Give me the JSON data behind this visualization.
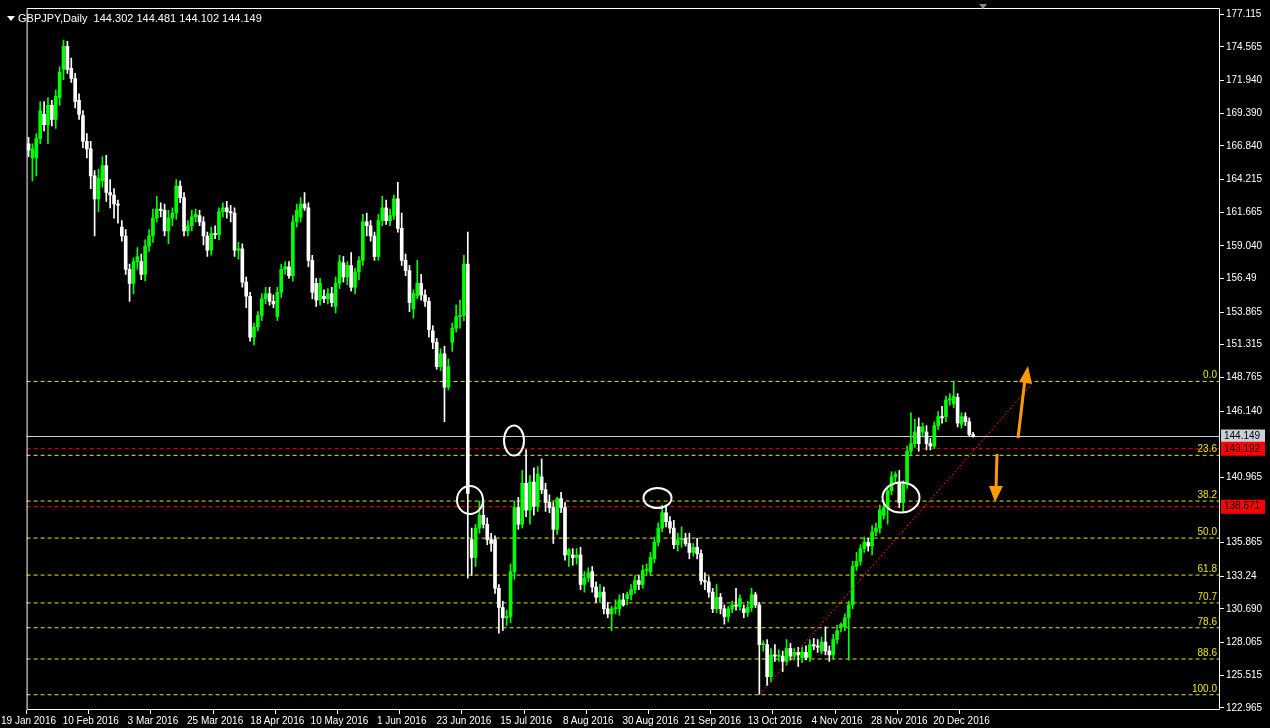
{
  "chart_data": {
    "type": "candlestick",
    "title": "GBPJPY,Daily  144.302 144.481 144.102 144.149",
    "colors": [
      "#ffffff",
      "#00ff00",
      "#00ff00",
      "#00ff00",
      "#ffffff",
      "#00ff00",
      "#ffffff",
      "#00ff00",
      "#00ff00",
      "#00ff00",
      "#ffffff",
      "#ffffff",
      "#ffffff",
      "#ffffff",
      "#ffffff",
      "#ffffff",
      "#ffffff",
      "#ffffff",
      "#00ff00",
      "#00ff00",
      "#ffffff",
      "#ffffff",
      "#ffffff",
      "#ffffff",
      "#ffffff",
      "#ffffff",
      "#ffffff",
      "#00ff00",
      "#00ff00",
      "#ffffff",
      "#00ff00",
      "#00ff00",
      "#00ff00",
      "#00ff00",
      "#ffffff",
      "#ffffff",
      "#00ff00",
      "#00ff00",
      "#00ff00",
      "#ffffff",
      "#ffffff",
      "#00ff00",
      "#00ff00",
      "#00ff00",
      "#ffffff",
      "#ffffff",
      "#ffffff",
      "#00ff00",
      "#ffffff",
      "#00ff00",
      "#00ff00",
      "#ffffff",
      "#ffffff",
      "#ffffff",
      "#00ff00",
      "#ffffff",
      "#ffffff",
      "#ffffff",
      "#00ff00",
      "#00ff00",
      "#00ff00",
      "#00ff00",
      "#ffffff",
      "#ffffff",
      "#00ff00",
      "#00ff00",
      "#00ff00",
      "#ffffff",
      "#00ff00",
      "#00ff00",
      "#00ff00",
      "#ffffff",
      "#ffffff",
      "#ffffff",
      "#ffffff",
      "#00ff00",
      "#ffffff",
      "#00ff00",
      "#ffffff",
      "#00ff00",
      "#00ff00",
      "#ffffff",
      "#00ff00",
      "#ffffff",
      "#00ff00",
      "#00ff00",
      "#00ff00",
      "#ffffff",
      "#ffffff",
      "#ffffff",
      "#00ff00",
      "#00ff00",
      "#ffffff",
      "#00ff00",
      "#00ff00",
      "#ffffff",
      "#ffffff",
      "#ffffff",
      "#ffffff",
      "#00ff00",
      "#00ff00",
      "#ffffff",
      "#ffffff",
      "#ffffff",
      "#ffffff",
      "#ffffff",
      "#00ff00",
      "#ffffff",
      "#00ff00",
      "#00ff00",
      "#00ff00",
      "#00ff00",
      "#00ff00",
      "#ffffff",
      "#ffffff",
      "#00ff00",
      "#00ff00",
      "#ffffff",
      "#ffffff",
      "#ffffff",
      "#ffffff",
      "#ffffff",
      "#ffffff",
      "#00ff00",
      "#00ff00",
      "#00ff00",
      "#ffffff",
      "#00ff00",
      "#ffffff",
      "#00ff00",
      "#ffffff",
      "#00ff00",
      "#ffffff",
      "#ffffff",
      "#ffffff",
      "#ffffff",
      "#00ff00",
      "#ffffff",
      "#ffffff",
      "#00ff00",
      "#ffffff",
      "#00ff00",
      "#ffffff",
      "#00ff00",
      "#00ff00",
      "#ffffff",
      "#ffffff",
      "#00ff00",
      "#ffffff",
      "#ffffff",
      "#00ff00",
      "#00ff00",
      "#00ff00",
      "#ffffff",
      "#00ff00",
      "#00ff00",
      "#00ff00",
      "#ffffff",
      "#00ff00",
      "#00ff00",
      "#00ff00",
      "#00ff00",
      "#00ff00",
      "#00ff00",
      "#ffffff",
      "#ffffff",
      "#ffffff",
      "#00ff00",
      "#00ff00",
      "#ffffff",
      "#ffffff",
      "#00ff00",
      "#ffffff",
      "#ffffff",
      "#ffffff",
      "#ffffff",
      "#ffffff",
      "#00ff00",
      "#ffffff",
      "#ffffff",
      "#00ff00",
      "#00ff00",
      "#ffffff",
      "#00ff00",
      "#ffffff",
      "#00ff00",
      "#00ff00",
      "#ffffff",
      "#ffffff",
      "#00ff00",
      "#ffffff",
      "#00ff00",
      "#ffffff",
      "#00ff00",
      "#ffffff",
      "#00ff00",
      "#ffffff",
      "#00ff00",
      "#ffffff",
      "#00ff00",
      "#ffffff",
      "#00ff00",
      "#ffffff",
      "#ffffff",
      "#00ff00",
      "#ffffff",
      "#ffffff",
      "#00ff00",
      "#00ff00",
      "#00ff00",
      "#00ff00",
      "#00ff00",
      "#00ff00",
      "#00ff00",
      "#00ff00",
      "#00ff00",
      "#ffffff",
      "#00ff00",
      "#00ff00",
      "#00ff00",
      "#00ff00",
      "#00ff00",
      "#00ff00",
      "#00ff00",
      "#ffffff",
      "#00ff00",
      "#00ff00",
      "#00ff00",
      "#00ff00",
      "#ffffff",
      "#00ff00",
      "#ffffff",
      "#ffffff",
      "#00ff00",
      "#00ff00",
      "#ffffff",
      "#00ff00",
      "#00ff00",
      "#00ff00",
      "#ffffff",
      "#00ff00",
      "#ffffff",
      "#ffffff",
      "#ffffff",
      null,
      null,
      null,
      null,
      null,
      null,
      null,
      null,
      null,
      null,
      null,
      null,
      null,
      null,
      null,
      null,
      null,
      null,
      null,
      null,
      null,
      null,
      null,
      null,
      null,
      null,
      null,
      null,
      null,
      null,
      null,
      null,
      null,
      null,
      null,
      null,
      null,
      null,
      null,
      null,
      null,
      null,
      null,
      null,
      null,
      null,
      null,
      null,
      null,
      null,
      null,
      null,
      null,
      null,
      null,
      null,
      null,
      null,
      null,
      null,
      null,
      null,
      null
    ],
    "categories": [
      "19 Jan 2016",
      null,
      null,
      null,
      null,
      null,
      null,
      null,
      null,
      null,
      null,
      null,
      null,
      null,
      null,
      null,
      "10 Feb 2016",
      null,
      null,
      null,
      null,
      null,
      null,
      null,
      null,
      null,
      null,
      null,
      null,
      null,
      null,
      null,
      "3 Mar 2016",
      null,
      null,
      null,
      null,
      null,
      null,
      null,
      null,
      null,
      null,
      null,
      null,
      null,
      null,
      null,
      "25 Mar 2016",
      null,
      null,
      null,
      null,
      null,
      null,
      null,
      null,
      null,
      null,
      null,
      null,
      null,
      null,
      null,
      "18 Apr 2016",
      null,
      null,
      null,
      null,
      null,
      null,
      null,
      null,
      null,
      null,
      null,
      null,
      null,
      null,
      null,
      "10 May 2016",
      null,
      null,
      null,
      null,
      null,
      null,
      null,
      null,
      null,
      null,
      null,
      null,
      null,
      null,
      null,
      "1 Jun 2016",
      null,
      null,
      null,
      null,
      null,
      null,
      null,
      null,
      null,
      null,
      null,
      null,
      null,
      null,
      null,
      "23 Jun 2016",
      null,
      null,
      null,
      null,
      null,
      null,
      null,
      null,
      null,
      null,
      null,
      null,
      null,
      null,
      null,
      "15 Jul 2016",
      null,
      null,
      null,
      null,
      null,
      null,
      null,
      null,
      null,
      null,
      null,
      null,
      null,
      null,
      null,
      "8 Aug 2016",
      null,
      null,
      null,
      null,
      null,
      null,
      null,
      null,
      null,
      null,
      null,
      null,
      null,
      null,
      null,
      "30 Aug 2016",
      null,
      null,
      null,
      null,
      null,
      null,
      null,
      null,
      null,
      null,
      null,
      null,
      null,
      null,
      null,
      "21 Sep 2016",
      null,
      null,
      null,
      null,
      null,
      null,
      null,
      null,
      null,
      null,
      null,
      null,
      null,
      null,
      null,
      "13 Oct 2016",
      null,
      null,
      null,
      null,
      null,
      null,
      null,
      null,
      null,
      null,
      null,
      null,
      null,
      null,
      null,
      "4 Nov 2016",
      null,
      null,
      null,
      null,
      null,
      null,
      null,
      null,
      null,
      null,
      null,
      null,
      null,
      null,
      null,
      "28 Nov 2016",
      null,
      null,
      null,
      null,
      null,
      null,
      null,
      null,
      null,
      null,
      null,
      null,
      null,
      null,
      null,
      "20 Dec 2016",
      null,
      null,
      null,
      null,
      null,
      null,
      null,
      null,
      null,
      null,
      null,
      null,
      null,
      null,
      null,
      null,
      null,
      null,
      null,
      null,
      null,
      null,
      null,
      null,
      null,
      null,
      null,
      null,
      null,
      null,
      null,
      null,
      null,
      null,
      null,
      null,
      null,
      null,
      null,
      null,
      null,
      null,
      null,
      null,
      null,
      null,
      null,
      null,
      null,
      null,
      null,
      null,
      null,
      null,
      null,
      null,
      null,
      null,
      null,
      null,
      null,
      null,
      null,
      null,
      null,
      null
    ],
    "ohlc": [
      [
        167.0,
        167.5,
        166.0,
        166.5
      ],
      [
        165.9,
        167.0,
        164.1,
        166.6
      ],
      [
        165.9,
        167.8,
        164.5,
        167.4
      ],
      [
        167.4,
        170.3,
        167.0,
        169.6
      ],
      [
        169.3,
        170.3,
        168.0,
        168.5
      ],
      [
        168.5,
        170.6,
        167.0,
        170.0
      ],
      [
        170.0,
        170.4,
        168.4,
        168.9
      ],
      [
        168.9,
        171.2,
        168.2,
        170.7
      ],
      [
        170.6,
        173.0,
        170.0,
        172.6
      ],
      [
        172.8,
        175.1,
        172.0,
        174.6
      ],
      [
        174.6,
        175.0,
        172.5,
        172.8
      ],
      [
        172.9,
        173.7,
        171.8,
        172.1
      ],
      [
        172.1,
        172.5,
        169.8,
        170.3
      ],
      [
        170.4,
        170.9,
        168.9,
        169.3
      ],
      [
        169.2,
        169.6,
        166.7,
        167.2
      ],
      [
        167.2,
        167.8,
        165.9,
        166.6
      ],
      [
        166.6,
        167.2,
        163.5,
        164.5
      ],
      [
        164.5,
        164.9,
        159.8,
        162.7
      ],
      [
        162.7,
        165.0,
        161.7,
        164.3
      ],
      [
        164.1,
        166.0,
        163.6,
        165.3
      ],
      [
        165.3,
        166.1,
        162.5,
        163.2
      ],
      [
        163.2,
        164.2,
        162.0,
        163.0
      ],
      [
        163.0,
        163.5,
        161.2,
        162.3
      ],
      [
        162.3,
        162.6,
        160.8,
        162.2
      ],
      [
        160.5,
        161.0,
        159.4,
        159.8
      ],
      [
        159.8,
        160.3,
        156.8,
        157.2
      ],
      [
        157.2,
        157.6,
        154.7,
        156.1
      ],
      [
        156.1,
        158.1,
        155.3,
        157.8
      ],
      [
        157.8,
        158.9,
        157.2,
        158.2
      ],
      [
        157.8,
        158.4,
        156.4,
        156.8
      ],
      [
        156.8,
        159.5,
        156.3,
        159.0
      ],
      [
        159.0,
        160.3,
        158.6,
        159.8
      ],
      [
        159.8,
        161.9,
        159.3,
        161.2
      ],
      [
        161.2,
        162.9,
        160.9,
        161.9
      ],
      [
        161.9,
        162.4,
        161.3,
        161.8
      ],
      [
        161.8,
        162.3,
        159.8,
        160.2
      ],
      [
        160.2,
        161.8,
        159.2,
        161.2
      ],
      [
        161.2,
        162.0,
        160.6,
        161.6
      ],
      [
        161.6,
        164.2,
        161.1,
        163.7
      ],
      [
        163.7,
        164.1,
        162.4,
        162.8
      ],
      [
        162.8,
        163.2,
        159.8,
        160.2
      ],
      [
        160.2,
        161.0,
        159.8,
        160.6
      ],
      [
        160.6,
        161.8,
        160.2,
        161.3
      ],
      [
        161.3,
        161.9,
        160.9,
        161.5
      ],
      [
        161.4,
        161.8,
        160.6,
        160.9
      ],
      [
        160.9,
        161.3,
        159.1,
        159.8
      ],
      [
        159.8,
        160.1,
        158.2,
        158.7
      ],
      [
        158.7,
        160.5,
        158.3,
        160.0
      ],
      [
        160.0,
        160.6,
        159.6,
        159.9
      ],
      [
        159.9,
        162.0,
        159.5,
        161.7
      ],
      [
        161.7,
        162.4,
        161.3,
        162.0
      ],
      [
        162.0,
        162.5,
        161.2,
        161.7
      ],
      [
        161.7,
        162.2,
        160.9,
        161.6
      ],
      [
        161.6,
        162.0,
        158.2,
        158.7
      ],
      [
        158.7,
        159.3,
        158.0,
        158.8
      ],
      [
        158.8,
        159.2,
        155.8,
        156.2
      ],
      [
        156.2,
        156.6,
        154.2,
        155.1
      ],
      [
        155.1,
        155.4,
        151.6,
        151.9
      ],
      [
        151.9,
        153.0,
        151.3,
        152.7
      ],
      [
        152.7,
        153.9,
        152.4,
        153.6
      ],
      [
        153.6,
        155.3,
        153.2,
        154.9
      ],
      [
        154.9,
        155.8,
        154.5,
        155.3
      ],
      [
        155.3,
        155.8,
        154.4,
        154.7
      ],
      [
        154.7,
        155.2,
        154.2,
        154.5
      ],
      [
        153.5,
        155.8,
        153.2,
        155.4
      ],
      [
        155.4,
        157.6,
        155.0,
        157.2
      ],
      [
        157.2,
        157.8,
        156.8,
        157.4
      ],
      [
        157.4,
        157.8,
        156.5,
        156.7
      ],
      [
        156.7,
        161.4,
        156.3,
        160.9
      ],
      [
        160.9,
        162.3,
        160.5,
        161.8
      ],
      [
        161.3,
        162.8,
        160.9,
        162.3
      ],
      [
        162.3,
        163.2,
        161.8,
        162.0
      ],
      [
        162.0,
        162.4,
        157.4,
        157.9
      ],
      [
        157.9,
        158.3,
        154.9,
        155.4
      ],
      [
        156.1,
        156.5,
        154.3,
        154.8
      ],
      [
        154.8,
        156.5,
        154.4,
        156.1
      ],
      [
        155.1,
        155.6,
        154.6,
        154.9
      ],
      [
        154.9,
        155.7,
        154.5,
        155.3
      ],
      [
        155.3,
        155.8,
        154.3,
        154.6
      ],
      [
        154.3,
        156.6,
        153.8,
        156.1
      ],
      [
        156.1,
        158.3,
        155.7,
        157.8
      ],
      [
        157.7,
        158.2,
        156.2,
        156.6
      ],
      [
        156.6,
        157.8,
        156.0,
        157.5
      ],
      [
        157.5,
        158.5,
        155.5,
        155.8
      ],
      [
        155.8,
        157.3,
        155.3,
        157.0
      ],
      [
        157.0,
        158.2,
        156.4,
        157.9
      ],
      [
        157.9,
        161.5,
        157.5,
        160.9
      ],
      [
        160.9,
        161.6,
        159.8,
        160.6
      ],
      [
        160.6,
        161.0,
        159.4,
        159.8
      ],
      [
        159.8,
        160.1,
        157.9,
        158.2
      ],
      [
        158.2,
        161.5,
        157.9,
        161.0
      ],
      [
        161.0,
        162.9,
        160.6,
        162.0
      ],
      [
        162.0,
        162.6,
        160.7,
        161.0
      ],
      [
        161.0,
        161.9,
        160.6,
        161.4
      ],
      [
        161.4,
        163.0,
        161.1,
        162.7
      ],
      [
        162.7,
        164.0,
        160.1,
        160.4
      ],
      [
        160.4,
        161.6,
        157.5,
        157.9
      ],
      [
        157.9,
        158.4,
        156.7,
        157.1
      ],
      [
        157.1,
        157.5,
        153.9,
        154.6
      ],
      [
        154.1,
        155.6,
        153.4,
        155.3
      ],
      [
        155.1,
        157.9,
        154.9,
        156.1
      ],
      [
        156.1,
        156.8,
        154.8,
        155.2
      ],
      [
        155.2,
        155.6,
        154.3,
        154.7
      ],
      [
        154.7,
        155.0,
        151.9,
        152.5
      ],
      [
        152.4,
        152.8,
        151.0,
        151.5
      ],
      [
        151.5,
        151.8,
        149.4,
        149.6
      ],
      [
        149.6,
        151.0,
        149.3,
        150.6
      ],
      [
        150.6,
        151.2,
        145.3,
        148.0
      ],
      [
        148.0,
        150.2,
        147.8,
        149.6
      ],
      [
        151.5,
        153.0,
        150.8,
        152.6
      ],
      [
        152.6,
        154.4,
        152.3,
        153.5
      ],
      [
        153.5,
        154.8,
        152.6,
        153.6
      ],
      [
        153.6,
        158.3,
        153.2,
        157.6
      ],
      [
        157.6,
        160.1,
        133.1,
        139.7
      ],
      [
        136.1,
        137.0,
        133.3,
        134.7
      ],
      [
        134.7,
        137.3,
        134.0,
        137.0
      ],
      [
        137.0,
        139.1,
        136.6,
        138.0
      ],
      [
        138.0,
        139.0,
        137.0,
        137.3
      ],
      [
        137.3,
        137.8,
        135.7,
        136.1
      ],
      [
        136.1,
        136.6,
        135.2,
        135.8
      ],
      [
        136.1,
        136.4,
        131.9,
        132.3
      ],
      [
        132.3,
        132.6,
        128.8,
        130.8
      ],
      [
        130.8,
        131.3,
        129.0,
        130.0
      ],
      [
        130.0,
        130.6,
        129.4,
        130.1
      ],
      [
        130.1,
        134.2,
        129.6,
        133.6
      ],
      [
        133.6,
        139.1,
        133.0,
        138.6
      ],
      [
        138.6,
        139.4,
        136.9,
        137.3
      ],
      [
        137.3,
        141.5,
        137.0,
        140.5
      ],
      [
        140.5,
        143.1,
        137.9,
        138.4
      ],
      [
        138.4,
        141.1,
        137.3,
        140.6
      ],
      [
        140.6,
        141.7,
        138.0,
        138.7
      ],
      [
        138.7,
        141.8,
        138.3,
        141.2
      ],
      [
        141.0,
        142.4,
        139.7,
        140.0
      ],
      [
        140.0,
        140.5,
        138.3,
        139.0
      ],
      [
        139.0,
        139.6,
        138.2,
        138.6
      ],
      [
        138.6,
        139.0,
        135.8,
        136.9
      ],
      [
        136.9,
        139.4,
        136.5,
        139.3
      ],
      [
        139.3,
        139.8,
        138.2,
        138.6
      ],
      [
        138.6,
        139.0,
        134.5,
        134.9
      ],
      [
        134.9,
        135.4,
        134.0,
        135.3
      ],
      [
        134.9,
        135.4,
        134.1,
        134.7
      ],
      [
        134.7,
        135.4,
        134.2,
        134.9
      ],
      [
        134.9,
        135.5,
        132.2,
        132.6
      ],
      [
        132.6,
        133.6,
        132.0,
        133.1
      ],
      [
        133.1,
        133.9,
        132.8,
        133.5
      ],
      [
        133.6,
        134.0,
        132.0,
        132.4
      ],
      [
        132.4,
        132.8,
        131.2,
        131.6
      ],
      [
        131.6,
        132.6,
        131.2,
        132.0
      ],
      [
        132.0,
        132.4,
        130.3,
        130.7
      ],
      [
        130.7,
        131.2,
        130.0,
        130.3
      ],
      [
        130.3,
        130.9,
        129.0,
        130.7
      ],
      [
        130.7,
        131.4,
        130.3,
        130.8
      ],
      [
        130.7,
        131.8,
        130.2,
        131.4
      ],
      [
        131.4,
        131.9,
        130.9,
        131.0
      ],
      [
        131.5,
        132.0,
        131.0,
        131.8
      ],
      [
        131.8,
        132.6,
        131.4,
        132.2
      ],
      [
        132.2,
        133.3,
        131.9,
        132.9
      ],
      [
        132.9,
        133.3,
        132.2,
        132.6
      ],
      [
        132.6,
        134.1,
        132.3,
        133.7
      ],
      [
        133.7,
        134.2,
        133.3,
        133.8
      ],
      [
        133.6,
        135.1,
        133.3,
        134.7
      ],
      [
        134.6,
        136.3,
        134.3,
        135.9
      ],
      [
        135.9,
        137.4,
        135.6,
        137.0
      ],
      [
        137.0,
        138.8,
        136.7,
        138.2
      ],
      [
        138.2,
        138.8,
        137.1,
        137.5
      ],
      [
        137.5,
        137.9,
        136.6,
        137.0
      ],
      [
        137.0,
        137.6,
        135.4,
        135.7
      ],
      [
        135.7,
        136.6,
        135.2,
        136.1
      ],
      [
        136.1,
        137.1,
        135.5,
        136.2
      ],
      [
        136.2,
        136.6,
        135.6,
        135.8
      ],
      [
        135.8,
        136.6,
        134.6,
        135.1
      ],
      [
        135.1,
        135.8,
        134.8,
        135.5
      ],
      [
        135.5,
        136.2,
        134.6,
        135.0
      ],
      [
        135.0,
        135.3,
        132.6,
        132.9
      ],
      [
        132.9,
        133.5,
        132.2,
        132.8
      ],
      [
        132.8,
        133.2,
        131.6,
        132.0
      ],
      [
        132.0,
        132.3,
        130.4,
        130.7
      ],
      [
        130.7,
        132.6,
        130.4,
        131.6
      ],
      [
        131.6,
        131.9,
        130.3,
        130.7
      ],
      [
        130.7,
        131.0,
        129.5,
        130.1
      ],
      [
        130.1,
        130.9,
        129.7,
        130.7
      ],
      [
        130.7,
        131.3,
        130.4,
        131.0
      ],
      [
        131.0,
        132.3,
        130.6,
        130.9
      ],
      [
        130.9,
        131.8,
        130.6,
        131.5
      ],
      [
        130.7,
        131.0,
        130.0,
        130.4
      ],
      [
        130.4,
        131.3,
        130.1,
        130.8
      ],
      [
        130.8,
        132.3,
        130.5,
        131.8
      ],
      [
        131.8,
        132.0,
        130.8,
        131.0
      ],
      [
        131.0,
        131.2,
        124.0,
        127.9
      ],
      [
        127.9,
        128.2,
        127.4,
        127.9
      ],
      [
        127.9,
        128.3,
        124.7,
        125.4
      ],
      [
        125.4,
        127.6,
        125.0,
        127.1
      ],
      [
        127.1,
        127.9,
        126.6,
        127.0
      ],
      [
        127.0,
        127.5,
        126.6,
        127.0
      ],
      [
        127.0,
        127.4,
        125.8,
        126.6
      ],
      [
        126.6,
        128.3,
        126.3,
        127.6
      ],
      [
        127.6,
        128.0,
        126.7,
        127.0
      ],
      [
        127.0,
        127.6,
        126.7,
        127.3
      ],
      [
        127.3,
        127.7,
        126.2,
        127.1
      ],
      [
        126.9,
        127.7,
        126.5,
        127.3
      ],
      [
        127.3,
        127.8,
        126.7,
        126.9
      ],
      [
        126.9,
        128.3,
        126.6,
        127.9
      ],
      [
        127.9,
        128.4,
        127.5,
        127.8
      ],
      [
        127.8,
        128.3,
        127.3,
        127.7
      ],
      [
        127.4,
        128.5,
        127.2,
        128.1
      ],
      [
        128.1,
        129.3,
        127.1,
        127.4
      ],
      [
        127.4,
        127.8,
        126.6,
        127.1
      ],
      [
        127.1,
        128.7,
        126.8,
        128.3
      ],
      [
        128.3,
        129.4,
        128.0,
        129.0
      ],
      [
        129.3,
        129.6,
        128.9,
        129.5
      ],
      [
        129.3,
        130.3,
        129.0,
        130.0
      ],
      [
        130.0,
        131.3,
        126.7,
        131.0
      ],
      [
        131.0,
        134.4,
        130.7,
        134.0
      ],
      [
        134.0,
        135.1,
        133.7,
        134.4
      ],
      [
        134.4,
        135.7,
        134.1,
        135.4
      ],
      [
        135.4,
        136.3,
        135.1,
        135.9
      ],
      [
        135.9,
        136.2,
        135.2,
        135.6
      ],
      [
        135.6,
        137.2,
        134.9,
        136.7
      ],
      [
        136.7,
        137.4,
        136.4,
        137.0
      ],
      [
        137.0,
        138.8,
        136.6,
        138.4
      ],
      [
        138.0,
        138.9,
        137.7,
        138.6
      ],
      [
        138.6,
        140.2,
        137.3,
        139.9
      ],
      [
        139.9,
        141.4,
        139.6,
        141.0
      ],
      [
        141.0,
        141.4,
        140.5,
        141.2
      ],
      [
        140.6,
        141.5,
        138.6,
        139.0
      ],
      [
        139.0,
        140.7,
        138.3,
        140.4
      ],
      [
        140.4,
        143.4,
        140.1,
        143.0
      ],
      [
        143.0,
        146.0,
        142.7,
        143.6
      ],
      [
        143.6,
        145.5,
        143.3,
        144.5
      ],
      [
        144.9,
        145.6,
        143.0,
        143.6
      ],
      [
        144.5,
        145.2,
        144.1,
        144.9
      ],
      [
        144.5,
        145.0,
        143.1,
        143.6
      ],
      [
        143.6,
        144.0,
        143.1,
        143.4
      ],
      [
        143.4,
        145.3,
        143.2,
        145.0
      ],
      [
        145.0,
        146.1,
        144.7,
        145.7
      ],
      [
        145.7,
        146.5,
        145.2,
        145.6
      ],
      [
        145.7,
        147.3,
        145.3,
        147.0
      ],
      [
        147.0,
        147.5,
        146.6,
        147.1
      ],
      [
        146.7,
        148.45,
        146.4,
        147.3
      ],
      [
        147.2,
        147.5,
        144.9,
        145.2
      ],
      [
        145.1,
        146.0,
        144.8,
        145.7
      ],
      [
        145.7,
        146.0,
        145.0,
        145.3
      ],
      [
        145.3,
        145.6,
        144.2,
        144.3
      ],
      [
        144.302,
        144.481,
        144.102,
        144.149
      ],
      null,
      null,
      null,
      null,
      null,
      null,
      null,
      null,
      null,
      null,
      null,
      null,
      null,
      null,
      null,
      null,
      null,
      null,
      null,
      null,
      null,
      null,
      null,
      null,
      null,
      null,
      null,
      null,
      null,
      null,
      null,
      null,
      null,
      null,
      null,
      null,
      null,
      null,
      null,
      null,
      null,
      null,
      null,
      null,
      null,
      null,
      null,
      null,
      null,
      null,
      null,
      null,
      null,
      null,
      null,
      null,
      null,
      null,
      null,
      null,
      null,
      null,
      null
    ],
    "series": [
      {
        "type": "line",
        "color": "#ff2020",
        "line_style": "dotted",
        "values": [
          null,
          null,
          null,
          null,
          null,
          null,
          null,
          null,
          null,
          null,
          null,
          null,
          null,
          null,
          null,
          null,
          null,
          null,
          null,
          null,
          null,
          null,
          null,
          null,
          null,
          null,
          null,
          null,
          null,
          null,
          null,
          null,
          null,
          null,
          null,
          null,
          null,
          null,
          null,
          null,
          null,
          null,
          null,
          null,
          null,
          null,
          null,
          null,
          null,
          null,
          null,
          null,
          null,
          null,
          null,
          null,
          null,
          null,
          null,
          null,
          null,
          null,
          null,
          null,
          null,
          null,
          null,
          null,
          null,
          null,
          null,
          null,
          null,
          null,
          null,
          null,
          null,
          null,
          null,
          null,
          null,
          null,
          null,
          null,
          null,
          null,
          null,
          null,
          null,
          null,
          null,
          null,
          null,
          null,
          null,
          null,
          null,
          null,
          null,
          null,
          null,
          null,
          null,
          null,
          null,
          null,
          null,
          null,
          null,
          null,
          null,
          null,
          null,
          null,
          null,
          null,
          null,
          null,
          null,
          null,
          null,
          null,
          null,
          null,
          null,
          null,
          null,
          null,
          null,
          null,
          null,
          null,
          null,
          null,
          null,
          null,
          null,
          null,
          null,
          null,
          null,
          null,
          null,
          null,
          null,
          null,
          null,
          null,
          null,
          null,
          null,
          null,
          null,
          null,
          null,
          null,
          null,
          null,
          null,
          null,
          null,
          null,
          null,
          null,
          null,
          null,
          null,
          null,
          null,
          null,
          null,
          null,
          null,
          null,
          null,
          null,
          null,
          null,
          null,
          null,
          null,
          null,
          null,
          null,
          null,
          null,
          null,
          null,
          124.0,
          null,
          null,
          null,
          null,
          null,
          null,
          null,
          null,
          null,
          null,
          null,
          null,
          null,
          null,
          null,
          null,
          null,
          null,
          null,
          null,
          null,
          null,
          null,
          null,
          null,
          null,
          null,
          null,
          null,
          null,
          null,
          null,
          null,
          null,
          null,
          null,
          null,
          null,
          null,
          null,
          null,
          null,
          null,
          null,
          null,
          null,
          null,
          null,
          null,
          null,
          null,
          null,
          null,
          null,
          null,
          null,
          null,
          null,
          null,
          null,
          null,
          null,
          null,
          null,
          null,
          null,
          null,
          null,
          null,
          148.2,
          null,
          null,
          null,
          null,
          null,
          null,
          null,
          null,
          null,
          null,
          null,
          null,
          null,
          null,
          null,
          null,
          null,
          null,
          null,
          null,
          null,
          null,
          null,
          null,
          null,
          null,
          null,
          null,
          null,
          null,
          null,
          null,
          null,
          null,
          null,
          null,
          null,
          null,
          null,
          null,
          null,
          null,
          null,
          null,
          null,
          null,
          null,
          null
        ]
      }
    ],
    "ylim": [
      122.8,
      177.6
    ],
    "yticks": [
      122.965,
      125.515,
      128.065,
      {
        "value": 130.69,
        "label": "130.690"
      },
      133.24,
      135.865,
      140.965,
      {
        "value": 146.14,
        "label": "146.140"
      },
      148.765,
      151.315,
      153.865,
      156.49,
      {
        "value": 159.04,
        "label": "159.040"
      },
      161.665,
      164.215,
      {
        "value": 166.84,
        "label": "166.840"
      },
      {
        "value": 169.39,
        "label": "169.390"
      },
      {
        "value": 171.94,
        "label": "171.940"
      },
      174.565,
      177.115
    ],
    "ref_lines": [
      {
        "axis": "y",
        "value": 148.45,
        "color": "#e8e800",
        "line_style": "dashed"
      },
      {
        "axis": "y",
        "value": 142.68,
        "color": "#e8e800",
        "line_style": "dashed"
      },
      {
        "axis": "y",
        "value": 139.11,
        "color": "#e8e800",
        "line_style": "dashed"
      },
      {
        "axis": "y",
        "value": 136.22,
        "color": "#e8e800",
        "line_style": "dashed"
      },
      {
        "axis": "y",
        "value": 133.33,
        "color": "#e8e800",
        "line_style": "dashed"
      },
      {
        "axis": "y",
        "value": 131.16,
        "color": "#e8e800",
        "line_style": "dashed"
      },
      {
        "axis": "y",
        "value": 129.22,
        "color": "#e8e800",
        "line_style": "dashed"
      },
      {
        "axis": "y",
        "value": 126.78,
        "color": "#e8e800",
        "line_style": "dashed"
      },
      {
        "axis": "y",
        "value": 123.99,
        "color": "#e8e800",
        "line_style": "dashed"
      },
      {
        "axis": "y",
        "value": 144.149,
        "label": "144.149",
        "color": "#c8d0d8",
        "line_style": "solid"
      },
      {
        "axis": "y",
        "value": 143.192,
        "label": "143.192",
        "color": "#ff0000",
        "line_style": "dashed"
      },
      {
        "axis": "y",
        "value": 138.671,
        "label": "138.671",
        "color": "#ff0000",
        "line_style": "dashed"
      }
    ],
    "annotations": [
      {
        "text": "0.0",
        "y": 148.45
      },
      {
        "text": "23.6",
        "y": 142.68
      },
      {
        "text": "38.2",
        "y": 139.11
      },
      {
        "text": "50.0",
        "y": 136.22
      },
      {
        "text": "61.8",
        "y": 133.33
      },
      {
        "text": "70.7",
        "y": 131.16
      },
      {
        "text": "78.6",
        "y": 129.22
      },
      {
        "text": "88.6",
        "y": 126.78
      },
      {
        "text": "100.0",
        "y": 123.99
      }
    ]
  }
}
